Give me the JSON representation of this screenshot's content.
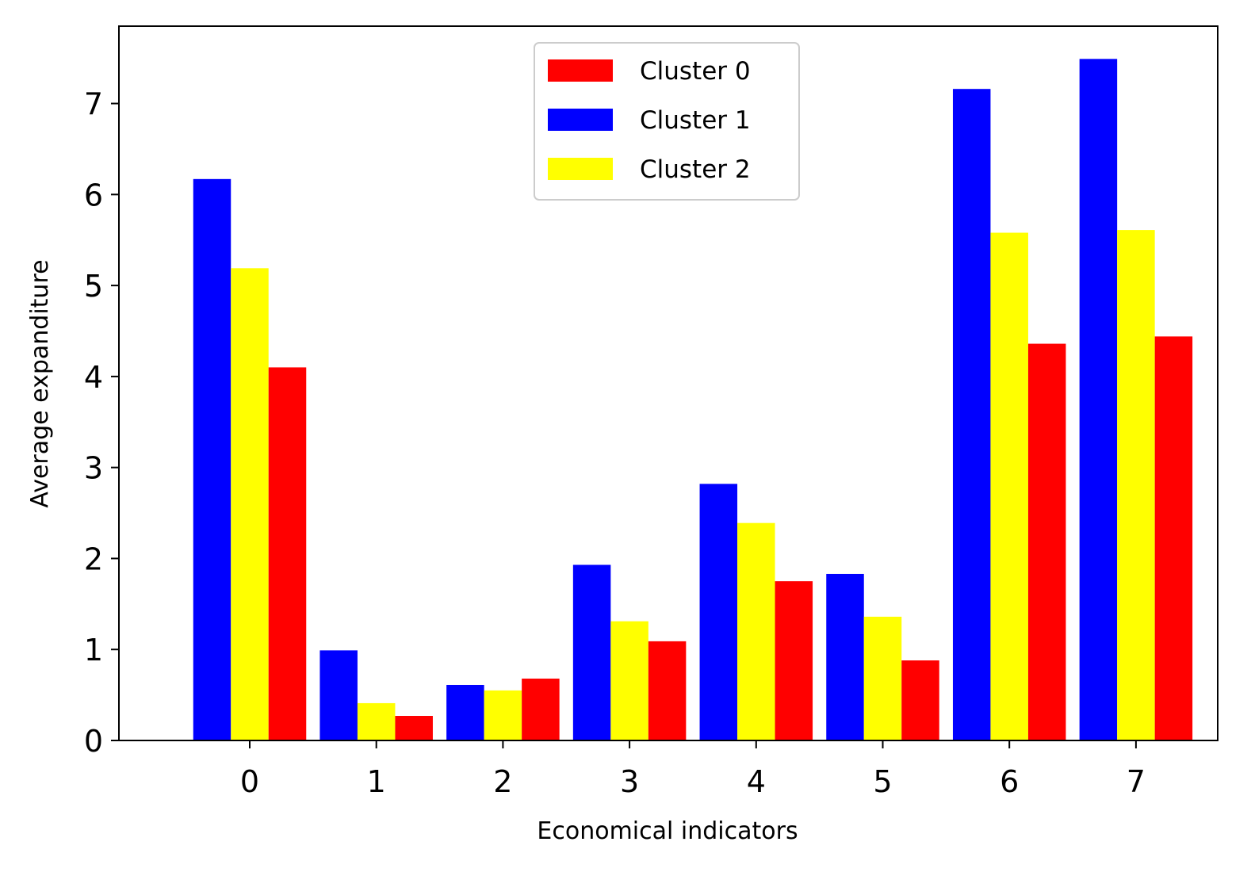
{
  "chart_data": {
    "type": "bar",
    "title": "",
    "xlabel": "Economical indicators",
    "ylabel": "Average expanditure",
    "categories": [
      "0",
      "1",
      "2",
      "3",
      "4",
      "5",
      "6",
      "7"
    ],
    "yticks": [
      "0",
      "1",
      "2",
      "3",
      "4",
      "5",
      "6",
      "7"
    ],
    "ylim": [
      0,
      7.85
    ],
    "grid": false,
    "legend_position": "upper center",
    "series": [
      {
        "name": "Cluster 1",
        "color": "#0000ff",
        "offset": -1,
        "values": [
          6.17,
          0.99,
          0.61,
          1.93,
          2.82,
          1.83,
          7.16,
          7.49
        ]
      },
      {
        "name": "Cluster 2",
        "color": "#ffff00",
        "offset": 0,
        "values": [
          5.19,
          0.41,
          0.55,
          1.31,
          2.39,
          1.36,
          5.58,
          5.61
        ]
      },
      {
        "name": "Cluster 0",
        "color": "#ff0000",
        "offset": 1,
        "values": [
          4.1,
          0.27,
          0.68,
          1.09,
          1.75,
          0.88,
          4.36,
          4.44
        ]
      }
    ],
    "legend_order": [
      "Cluster 0",
      "Cluster 1",
      "Cluster 2"
    ]
  }
}
